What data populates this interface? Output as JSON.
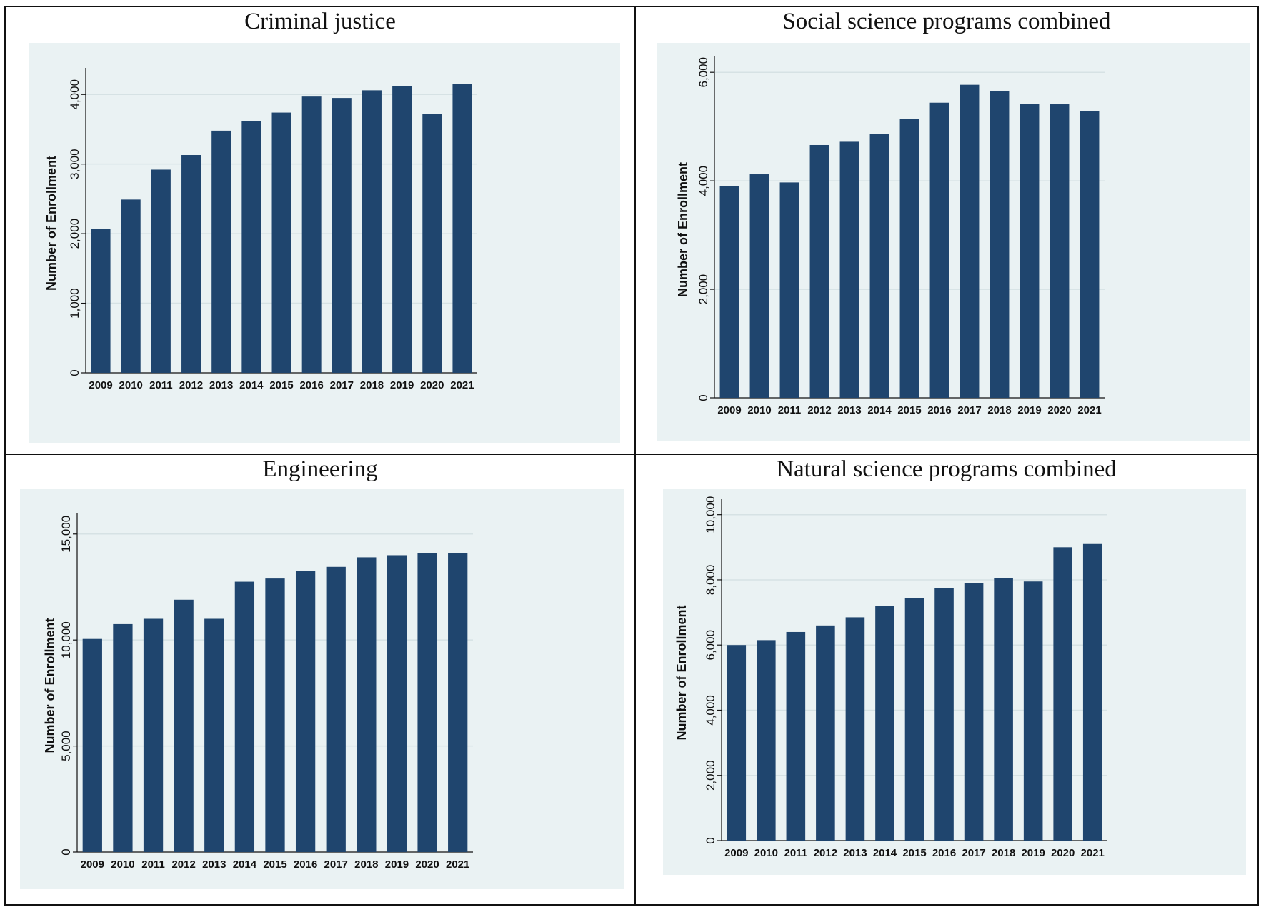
{
  "figure": {
    "bar_color": "#1f456e",
    "background_color": "#eaf2f3",
    "grid_color": "#d6e2e4"
  },
  "chart_data": [
    {
      "id": "criminal-justice",
      "type": "bar",
      "title": "Criminal justice",
      "xlabel": "",
      "ylabel": "Number of Enrollment",
      "ylim": [
        0,
        4300
      ],
      "yticks": [
        0,
        1000,
        2000,
        3000,
        4000
      ],
      "ytick_labels": [
        "0",
        "1,000",
        "2,000",
        "3,000",
        "4,000"
      ],
      "categories": [
        "2009",
        "2010",
        "2011",
        "2012",
        "2013",
        "2014",
        "2015",
        "2016",
        "2017",
        "2018",
        "2019",
        "2020",
        "2021"
      ],
      "values": [
        2070,
        2490,
        2920,
        3130,
        3480,
        3620,
        3740,
        3970,
        3950,
        4060,
        4120,
        3720,
        4150
      ]
    },
    {
      "id": "social-science",
      "type": "bar",
      "title": "Social science programs combined",
      "xlabel": "",
      "ylabel": "Number of Enrollment",
      "ylim": [
        0,
        6200
      ],
      "yticks": [
        0,
        2000,
        4000,
        6000
      ],
      "ytick_labels": [
        "0",
        "2,000",
        "4,000",
        "6,000"
      ],
      "categories": [
        "2009",
        "2010",
        "2011",
        "2012",
        "2013",
        "2014",
        "2015",
        "2016",
        "2017",
        "2018",
        "2019",
        "2020",
        "2021"
      ],
      "values": [
        3900,
        4120,
        3970,
        4660,
        4720,
        4870,
        5140,
        5440,
        5770,
        5650,
        5420,
        5410,
        5280
      ]
    },
    {
      "id": "engineering",
      "type": "bar",
      "title": "Engineering",
      "xlabel": "",
      "ylabel": "Number of Enrollment",
      "ylim": [
        0,
        15700
      ],
      "yticks": [
        0,
        5000,
        10000,
        15000
      ],
      "ytick_labels": [
        "0",
        "5,000",
        "10,000",
        "15,000"
      ],
      "categories": [
        "2009",
        "2010",
        "2011",
        "2012",
        "2013",
        "2014",
        "2015",
        "2016",
        "2017",
        "2018",
        "2019",
        "2020",
        "2021"
      ],
      "values": [
        10050,
        10750,
        11000,
        11900,
        11000,
        12750,
        12900,
        13250,
        13450,
        13900,
        14000,
        14100,
        14100
      ]
    },
    {
      "id": "natural-science",
      "type": "bar",
      "title": "Natural science programs combined",
      "xlabel": "",
      "ylabel": "Number of Enrollment",
      "ylim": [
        0,
        10300
      ],
      "yticks": [
        0,
        2000,
        4000,
        6000,
        8000,
        10000
      ],
      "ytick_labels": [
        "0",
        "2,000",
        "4,000",
        "6,000",
        "8,000",
        "10,000"
      ],
      "categories": [
        "2009",
        "2010",
        "2011",
        "2012",
        "2013",
        "2014",
        "2015",
        "2016",
        "2017",
        "2018",
        "2019",
        "2020",
        "2021"
      ],
      "values": [
        6000,
        6150,
        6400,
        6600,
        6850,
        7200,
        7450,
        7750,
        7900,
        8050,
        7950,
        9000,
        9100
      ]
    }
  ]
}
